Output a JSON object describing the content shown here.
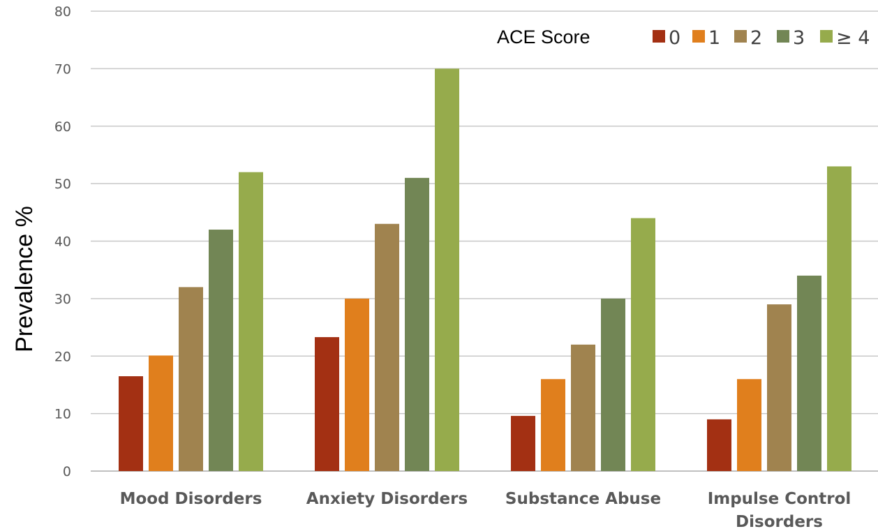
{
  "chart_data": {
    "type": "bar",
    "ylabel": "Prevalence %",
    "xlabel": "",
    "ylim": [
      0,
      80
    ],
    "yticks": [
      0,
      10,
      20,
      30,
      40,
      50,
      60,
      70,
      80
    ],
    "grid": true,
    "legend": {
      "title": "ACE Score",
      "placement": "top-right"
    },
    "categories": [
      [
        "Mood Disorders"
      ],
      [
        "Anxiety Disorders"
      ],
      [
        "Substance Abuse"
      ],
      [
        "Impulse Control",
        "Disorders"
      ]
    ],
    "series": [
      {
        "name": "0",
        "color": "#a33013",
        "values": [
          16.5,
          23.3,
          9.6,
          9.0
        ]
      },
      {
        "name": "1",
        "color": "#e07f1d",
        "values": [
          20.1,
          30,
          16,
          16
        ]
      },
      {
        "name": "2",
        "color": "#a0834f",
        "values": [
          32,
          43,
          22,
          29
        ]
      },
      {
        "name": "3",
        "color": "#728655",
        "values": [
          42,
          51,
          30,
          34
        ]
      },
      {
        "name": "≥ 4",
        "color": "#96ab4c",
        "values": [
          52,
          70,
          44,
          53
        ]
      }
    ]
  }
}
